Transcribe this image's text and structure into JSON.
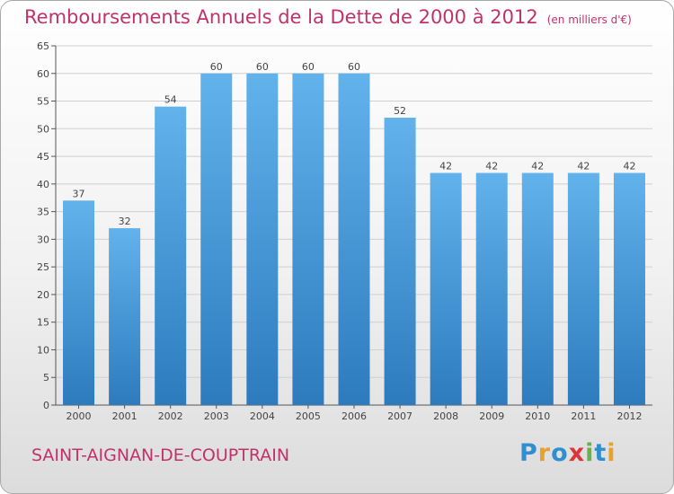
{
  "header": {
    "title": "Remboursements Annuels de la Dette de 2000 à 2012",
    "subtitle": "(en milliers d'€)"
  },
  "footer": {
    "commune": "SAINT-AIGNAN-DE-COUPTRAIN",
    "logo": {
      "text": "Proxiti",
      "letters": [
        {
          "char": "P",
          "color": "#2f8fd0"
        },
        {
          "char": "r",
          "color": "#e8a12a"
        },
        {
          "char": "o",
          "color": "#2f8fd0"
        },
        {
          "char": "x",
          "color": "#d8363a"
        },
        {
          "char": "i",
          "color": "#6ab04c"
        },
        {
          "char": "t",
          "color": "#2f8fd0"
        },
        {
          "char": "i",
          "color": "#e8a12a"
        }
      ]
    }
  },
  "colors": {
    "title": "#c0336a",
    "bar_top": "#62b2ec",
    "bar_bottom": "#2d7bbd",
    "grid": "#cfcfcf"
  },
  "chart_data": {
    "type": "bar",
    "title": "Remboursements Annuels de la Dette de 2000 à 2012",
    "subtitle": "(en milliers d'€)",
    "xlabel": "",
    "ylabel": "",
    "categories": [
      "2000",
      "2001",
      "2002",
      "2003",
      "2004",
      "2005",
      "2006",
      "2007",
      "2008",
      "2009",
      "2010",
      "2011",
      "2012"
    ],
    "values": [
      37,
      32,
      54,
      60,
      60,
      60,
      60,
      52,
      42,
      42,
      42,
      42,
      42
    ],
    "ylim": [
      0,
      65
    ],
    "yticks": [
      0,
      5,
      10,
      15,
      20,
      25,
      30,
      35,
      40,
      45,
      50,
      55,
      60,
      65
    ],
    "grid": true,
    "data_labels": true
  }
}
